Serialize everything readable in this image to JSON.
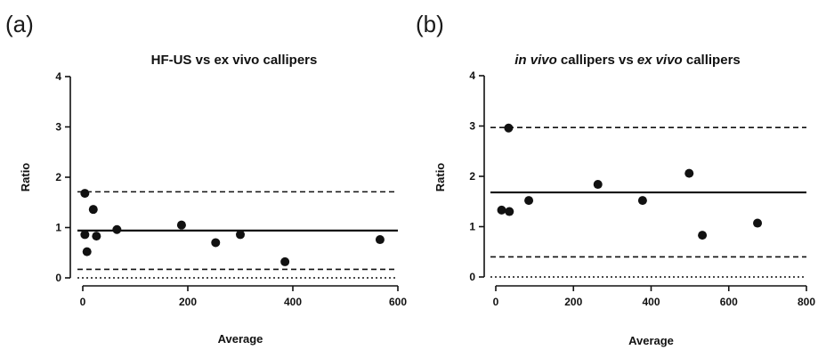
{
  "chart_data": [
    {
      "panel_label": "(a)",
      "type": "scatter",
      "title_parts": [
        {
          "text": "HF-US vs ex vivo callipers",
          "italic": false
        }
      ],
      "xlabel": "Average",
      "ylabel": "Ratio",
      "xlim": [
        0,
        600
      ],
      "ylim": [
        0,
        4
      ],
      "xticks": [
        0,
        200,
        400,
        600
      ],
      "yticks": [
        0,
        1,
        2,
        3,
        4
      ],
      "points": [
        {
          "x": 4,
          "y": 1.68
        },
        {
          "x": 4,
          "y": 0.86
        },
        {
          "x": 8,
          "y": 0.52
        },
        {
          "x": 20,
          "y": 1.36
        },
        {
          "x": 26,
          "y": 0.83
        },
        {
          "x": 65,
          "y": 0.96
        },
        {
          "x": 188,
          "y": 1.05
        },
        {
          "x": 253,
          "y": 0.7
        },
        {
          "x": 300,
          "y": 0.86
        },
        {
          "x": 385,
          "y": 0.32
        },
        {
          "x": 566,
          "y": 0.76
        }
      ],
      "lines": [
        {
          "style": "solid",
          "y": 0.94
        },
        {
          "style": "dashed",
          "y": 1.71
        },
        {
          "style": "dashed",
          "y": 0.17
        },
        {
          "style": "dotted",
          "y": 0
        }
      ]
    },
    {
      "panel_label": "(b)",
      "type": "scatter",
      "title_parts": [
        {
          "text": "in vivo",
          "italic": true
        },
        {
          "text": " callipers vs ",
          "italic": false
        },
        {
          "text": "ex vivo",
          "italic": true
        },
        {
          "text": " callipers",
          "italic": false
        }
      ],
      "xlabel": "Average",
      "ylabel": "Ratio",
      "xlim": [
        0,
        800
      ],
      "ylim": [
        0,
        4
      ],
      "xticks": [
        0,
        200,
        400,
        600,
        800
      ],
      "yticks": [
        0,
        1,
        2,
        3,
        4
      ],
      "points": [
        {
          "x": 15,
          "y": 1.33
        },
        {
          "x": 33,
          "y": 2.96
        },
        {
          "x": 35,
          "y": 1.3
        },
        {
          "x": 85,
          "y": 1.52
        },
        {
          "x": 263,
          "y": 1.84
        },
        {
          "x": 378,
          "y": 1.52
        },
        {
          "x": 498,
          "y": 2.06
        },
        {
          "x": 532,
          "y": 0.83
        },
        {
          "x": 674,
          "y": 1.07
        }
      ],
      "lines": [
        {
          "style": "solid",
          "y": 1.68
        },
        {
          "style": "dashed",
          "y": 2.97
        },
        {
          "style": "dashed",
          "y": 0.4
        },
        {
          "style": "dotted",
          "y": 0
        }
      ]
    }
  ]
}
